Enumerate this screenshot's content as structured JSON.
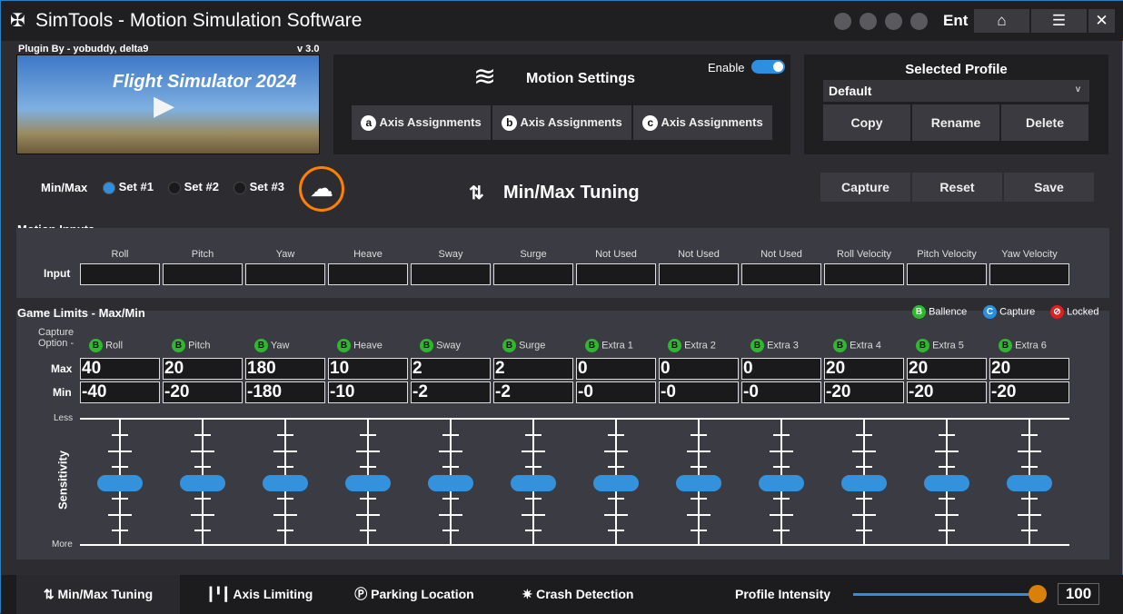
{
  "window": {
    "title": "SimTools - Motion Simulation Software",
    "user_badge": "Ent",
    "icons": [
      "upload-icon",
      "gear-icon",
      "pencil-icon",
      "plug-icon"
    ]
  },
  "plugin": {
    "credit": "Plugin By - yobuddy, delta9",
    "version": "v 3.0",
    "banner_text": "Flight Simulator 2024"
  },
  "motion_settings": {
    "title": "Motion Settings",
    "enable_label": "Enable",
    "enabled": true,
    "axis_buttons": [
      {
        "badge": "a",
        "label": "Axis Assignments"
      },
      {
        "badge": "b",
        "label": "Axis Assignments"
      },
      {
        "badge": "c",
        "label": "Axis Assignments"
      }
    ]
  },
  "profile": {
    "title": "Selected Profile",
    "selected": "Default",
    "caret": "v",
    "buttons": [
      "Copy",
      "Rename",
      "Delete"
    ]
  },
  "minmax": {
    "label": "Min/Max",
    "sets": [
      "Set #1",
      "Set #2",
      "Set #3"
    ],
    "selected_set": 0,
    "heading": "Min/Max Tuning",
    "actions": [
      "Capture",
      "Reset",
      "Save"
    ]
  },
  "motion_inputs": {
    "title": "Motion Inputs",
    "row_label": "Input",
    "columns": [
      "Roll",
      "Pitch",
      "Yaw",
      "Heave",
      "Sway",
      "Surge",
      "Not Used",
      "Not Used",
      "Not Used",
      "Roll Velocity",
      "Pitch Velocity",
      "Yaw Velocity"
    ],
    "values": [
      "",
      "",
      "",
      "",
      "",
      "",
      "",
      "",
      "",
      "",
      "",
      ""
    ]
  },
  "game_limits": {
    "title": "Game Limits - Max/Min",
    "legend": [
      {
        "badge": "B",
        "label": "Ballence",
        "color": "#2eb82e"
      },
      {
        "badge": "C",
        "label": "Capture",
        "color": "#2a8fe0"
      },
      {
        "badge": "⊘",
        "label": "Locked",
        "color": "#e02020"
      }
    ],
    "capture_label": "Capture Option -",
    "max_label": "Max",
    "min_label": "Min",
    "axes": [
      {
        "name": "Roll",
        "option": "B",
        "max": "40",
        "min": "-40",
        "sensitivity": 0.5
      },
      {
        "name": "Pitch",
        "option": "B",
        "max": "20",
        "min": "-20",
        "sensitivity": 0.5
      },
      {
        "name": "Yaw",
        "option": "B",
        "max": "180",
        "min": "-180",
        "sensitivity": 0.5
      },
      {
        "name": "Heave",
        "option": "B",
        "max": "10",
        "min": "-10",
        "sensitivity": 0.5
      },
      {
        "name": "Sway",
        "option": "B",
        "max": "2",
        "min": "-2",
        "sensitivity": 0.5
      },
      {
        "name": "Surge",
        "option": "B",
        "max": "2",
        "min": "-2",
        "sensitivity": 0.5
      },
      {
        "name": "Extra 1",
        "option": "B",
        "max": "0",
        "min": "-0",
        "sensitivity": 0.5
      },
      {
        "name": "Extra 2",
        "option": "B",
        "max": "0",
        "min": "-0",
        "sensitivity": 0.5
      },
      {
        "name": "Extra 3",
        "option": "B",
        "max": "0",
        "min": "-0",
        "sensitivity": 0.5
      },
      {
        "name": "Extra 4",
        "option": "B",
        "max": "20",
        "min": "-20",
        "sensitivity": 0.5
      },
      {
        "name": "Extra 5",
        "option": "B",
        "max": "20",
        "min": "-20",
        "sensitivity": 0.5
      },
      {
        "name": "Extra 6",
        "option": "B",
        "max": "20",
        "min": "-20",
        "sensitivity": 0.5
      }
    ],
    "sensitivity_label": "Sensitivity",
    "less_label": "Less",
    "more_label": "More"
  },
  "bottom_tabs": [
    {
      "label": "Min/Max Tuning",
      "icon": "arrows-updown-icon",
      "active": true
    },
    {
      "label": "Axis Limiting",
      "icon": "axis-limit-icon"
    },
    {
      "label": "Parking Location",
      "icon": "parking-icon"
    },
    {
      "label": "Crash Detection",
      "icon": "crash-icon"
    }
  ],
  "intensity": {
    "label": "Profile Intensity",
    "value": "100",
    "fraction": 1.0
  },
  "colors": {
    "accent": "#2e8fe0",
    "slider_thumb": "#d9800a",
    "highlight_ring": "#ff7f00"
  }
}
